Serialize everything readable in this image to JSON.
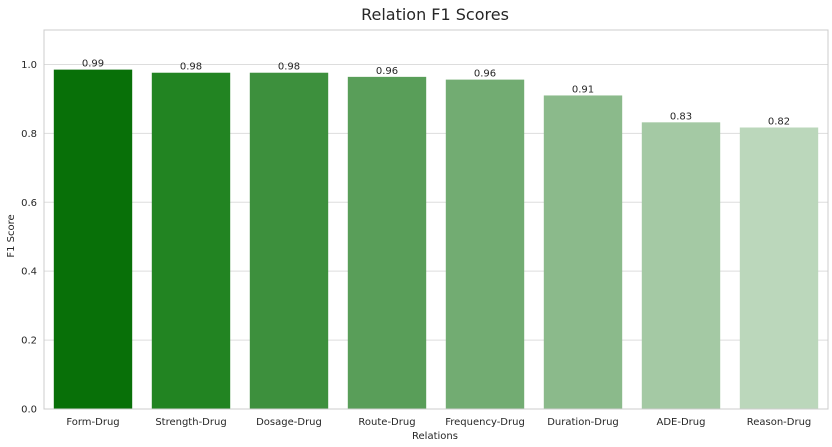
{
  "chart_data": {
    "type": "bar",
    "title": "Relation F1 Scores",
    "xlabel": "Relations",
    "ylabel": "F1 Score",
    "categories": [
      "Form-Drug",
      "Strength-Drug",
      "Dosage-Drug",
      "Route-Drug",
      "Frequency-Drug",
      "Duration-Drug",
      "ADE-Drug",
      "Reason-Drug"
    ],
    "values": [
      0.985,
      0.976,
      0.976,
      0.964,
      0.956,
      0.91,
      0.832,
      0.817
    ],
    "data_labels": [
      "0.99",
      "0.98",
      "0.98",
      "0.96",
      "0.96",
      "0.91",
      "0.83",
      "0.82"
    ],
    "colors": [
      "#087008",
      "#228422",
      "#3d903d",
      "#599e59",
      "#72ac72",
      "#8bba8b",
      "#a4c9a4",
      "#bbd7bb"
    ],
    "ylim": [
      0,
      1.1
    ],
    "yticks": [
      "0.0",
      "0.2",
      "0.4",
      "0.6",
      "0.8",
      "1.0"
    ],
    "grid": true,
    "legend": "none"
  }
}
